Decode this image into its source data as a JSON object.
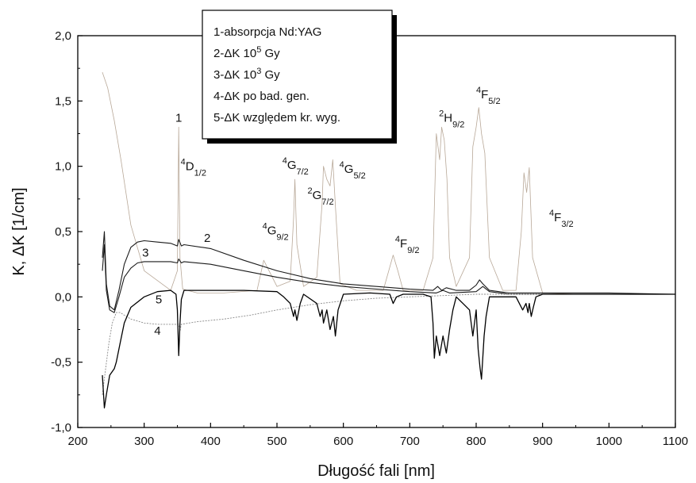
{
  "chart_data": {
    "type": "line",
    "xlabel": "Długość fali [nm]",
    "ylabel": "K, ΔK [1/cm]",
    "xlim": [
      200,
      1100
    ],
    "ylim": [
      -1.0,
      2.0
    ],
    "xticks": [
      200,
      300,
      400,
      500,
      600,
      700,
      800,
      900,
      1000,
      1100
    ],
    "xtick_labels": [
      "200",
      "300",
      "400",
      "500",
      "600",
      "700",
      "800",
      "900",
      "1000",
      "1100"
    ],
    "yticks": [
      -1.0,
      -0.5,
      0.0,
      0.5,
      1.0,
      1.5,
      2.0
    ],
    "ytick_labels": [
      "-1,0",
      "-0,5",
      "0,0",
      "0,5",
      "1,0",
      "1,5",
      "2,0"
    ],
    "grid": false,
    "legend_position": "top-center",
    "legend": [
      {
        "pre": "1-absorpcja Nd:YAG",
        "sup": "",
        "post": ""
      },
      {
        "pre": "2-ΔK 10",
        "sup": "5",
        "post": " Gy"
      },
      {
        "pre": "3-ΔK 10",
        "sup": "3",
        "post": " Gy"
      },
      {
        "pre": "4-ΔK po bad. gen.",
        "sup": "",
        "post": ""
      },
      {
        "pre": "5-ΔK względem kr. wyg.",
        "sup": "",
        "post": ""
      }
    ],
    "curve_labels": [
      {
        "text": "1",
        "x": 352,
        "y": 1.34
      },
      {
        "text": "2",
        "x": 395,
        "y": 0.42
      },
      {
        "text": "3",
        "x": 302,
        "y": 0.31
      },
      {
        "text": "4",
        "x": 320,
        "y": -0.29
      },
      {
        "text": "5",
        "x": 322,
        "y": -0.05
      }
    ],
    "transition_labels": [
      {
        "sup": "4",
        "main": "D",
        "sub": "1/2",
        "x": 355,
        "y": 0.97
      },
      {
        "sup": "4",
        "main": "G",
        "sub": "9/2",
        "x": 478,
        "y": 0.48
      },
      {
        "sup": "4",
        "main": "G",
        "sub": "7/2",
        "x": 508,
        "y": 0.98
      },
      {
        "sup": "2",
        "main": "G",
        "sub": "7/2",
        "x": 546,
        "y": 0.75
      },
      {
        "sup": "4",
        "main": "G",
        "sub": "5/2",
        "x": 594,
        "y": 0.95
      },
      {
        "sup": "4",
        "main": "F",
        "sub": "9/2",
        "x": 678,
        "y": 0.38
      },
      {
        "sup": "2",
        "main": "H",
        "sub": "9/2",
        "x": 744,
        "y": 1.34
      },
      {
        "sup": "4",
        "main": "F",
        "sub": "5/2",
        "x": 800,
        "y": 1.52
      },
      {
        "sup": "4",
        "main": "F",
        "sub": "3/2",
        "x": 910,
        "y": 0.58
      }
    ],
    "series": [
      {
        "name": "1",
        "color": "#b8a898",
        "x": [
          237,
          245,
          255,
          265,
          280,
          300,
          340,
          350,
          352,
          354,
          358,
          380,
          420,
          470,
          480,
          500,
          520,
          525,
          527,
          530,
          540,
          560,
          568,
          570,
          575,
          580,
          584,
          588,
          595,
          620,
          660,
          675,
          682,
          690,
          720,
          735,
          740,
          745,
          748,
          752,
          756,
          760,
          770,
          790,
          795,
          800,
          804,
          808,
          813,
          820,
          840,
          860,
          868,
          872,
          876,
          880,
          885,
          900,
          950,
          1000,
          1100
        ],
        "y": [
          1.72,
          1.6,
          1.35,
          1.05,
          0.55,
          0.2,
          0.05,
          0.2,
          1.3,
          0.3,
          0.06,
          0.03,
          0.03,
          0.05,
          0.28,
          0.08,
          0.12,
          0.6,
          0.9,
          0.4,
          0.08,
          0.15,
          0.72,
          1.0,
          0.9,
          0.85,
          1.05,
          0.7,
          0.1,
          0.05,
          0.05,
          0.32,
          0.2,
          0.05,
          0.05,
          0.3,
          1.25,
          1.05,
          1.3,
          1.2,
          0.9,
          0.3,
          0.08,
          0.3,
          1.15,
          1.3,
          1.45,
          1.25,
          1.1,
          0.3,
          0.05,
          0.05,
          0.5,
          0.95,
          0.8,
          0.99,
          0.3,
          0.03,
          0.02,
          0.02,
          0.02
        ]
      },
      {
        "name": "2",
        "color": "#1a1a1a",
        "x": [
          237,
          240,
          243,
          248,
          255,
          262,
          270,
          280,
          290,
          300,
          320,
          340,
          350,
          352,
          356,
          360,
          400,
          450,
          500,
          550,
          600,
          650,
          700,
          735,
          742,
          748,
          755,
          770,
          790,
          800,
          805,
          810,
          820,
          850,
          900,
          950,
          1000,
          1100
        ],
        "y": [
          0.3,
          0.5,
          0.1,
          -0.07,
          -0.1,
          0.05,
          0.25,
          0.38,
          0.42,
          0.43,
          0.42,
          0.41,
          0.39,
          0.44,
          0.39,
          0.4,
          0.37,
          0.28,
          0.2,
          0.14,
          0.1,
          0.08,
          0.06,
          0.05,
          0.08,
          0.05,
          0.07,
          0.05,
          0.05,
          0.09,
          0.13,
          0.1,
          0.05,
          0.03,
          0.03,
          0.03,
          0.03,
          0.02
        ]
      },
      {
        "name": "3",
        "color": "#1a1a1a",
        "x": [
          237,
          240,
          243,
          248,
          255,
          262,
          270,
          280,
          290,
          300,
          320,
          340,
          350,
          352,
          356,
          360,
          400,
          450,
          500,
          550,
          600,
          650,
          700,
          740,
          750,
          760,
          800,
          810,
          820,
          850,
          900,
          1000,
          1100
        ],
        "y": [
          0.2,
          0.4,
          0.05,
          -0.1,
          -0.12,
          0.0,
          0.15,
          0.22,
          0.26,
          0.27,
          0.27,
          0.27,
          0.26,
          0.29,
          0.26,
          0.27,
          0.25,
          0.2,
          0.15,
          0.11,
          0.08,
          0.06,
          0.04,
          0.03,
          0.05,
          0.03,
          0.04,
          0.08,
          0.04,
          0.02,
          0.02,
          0.02,
          0.02
        ]
      },
      {
        "name": "4",
        "color": "#8a8a8a",
        "x": [
          237,
          242,
          247,
          252,
          258,
          264,
          270,
          280,
          300,
          320,
          340,
          352,
          354,
          356,
          380,
          420,
          460,
          500,
          550,
          600,
          650,
          700,
          750,
          800,
          900,
          1000,
          1100
        ],
        "y": [
          -0.75,
          -0.55,
          -0.35,
          -0.2,
          -0.12,
          -0.12,
          -0.14,
          -0.17,
          -0.2,
          -0.21,
          -0.21,
          -0.21,
          -0.26,
          -0.21,
          -0.19,
          -0.17,
          -0.14,
          -0.1,
          -0.06,
          -0.03,
          -0.01,
          0.0,
          0.01,
          0.02,
          0.02,
          0.02,
          0.02
        ]
      },
      {
        "name": "5",
        "color": "#000000",
        "x": [
          237,
          240,
          243,
          248,
          255,
          258,
          264,
          270,
          280,
          300,
          320,
          340,
          348,
          350,
          352,
          354,
          356,
          360,
          400,
          450,
          500,
          510,
          520,
          525,
          527,
          530,
          535,
          540,
          560,
          565,
          568,
          570,
          575,
          580,
          585,
          588,
          592,
          600,
          640,
          670,
          675,
          680,
          690,
          720,
          732,
          735,
          737,
          740,
          745,
          750,
          755,
          760,
          765,
          770,
          780,
          790,
          795,
          800,
          803,
          806,
          808,
          812,
          815,
          820,
          830,
          860,
          865,
          870,
          875,
          878,
          880,
          883,
          886,
          890,
          900,
          950,
          1000,
          1100
        ],
        "y": [
          -0.6,
          -0.85,
          -0.75,
          -0.6,
          -0.55,
          -0.5,
          -0.35,
          -0.2,
          -0.08,
          0.0,
          0.04,
          0.05,
          0.02,
          -0.1,
          -0.45,
          -0.2,
          -0.02,
          0.05,
          0.05,
          0.05,
          0.04,
          0.0,
          -0.05,
          -0.15,
          -0.1,
          -0.18,
          -0.05,
          0.02,
          -0.05,
          -0.15,
          -0.1,
          -0.2,
          -0.1,
          -0.25,
          -0.15,
          -0.3,
          -0.1,
          0.02,
          0.03,
          0.02,
          -0.05,
          0.0,
          0.02,
          0.02,
          0.0,
          -0.2,
          -0.47,
          -0.3,
          -0.45,
          -0.3,
          -0.43,
          -0.25,
          -0.1,
          0.0,
          -0.05,
          -0.1,
          -0.3,
          -0.1,
          -0.4,
          -0.55,
          -0.63,
          -0.3,
          -0.15,
          0.0,
          0.0,
          0.0,
          -0.05,
          -0.1,
          -0.05,
          -0.12,
          -0.05,
          -0.15,
          -0.08,
          0.0,
          0.02,
          0.02,
          0.02,
          0.02
        ]
      }
    ]
  }
}
